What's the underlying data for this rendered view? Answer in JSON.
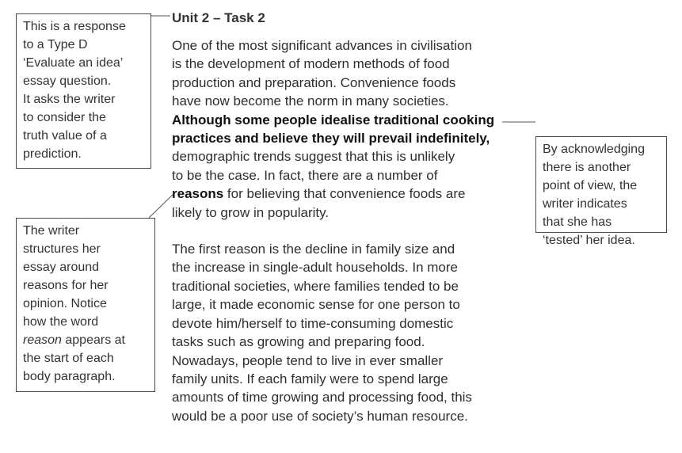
{
  "notes": {
    "type_d": {
      "lines": [
        "This is a response",
        "to a Type D",
        "‘Evaluate an idea’",
        "essay question.",
        "It asks the writer",
        "to consider the",
        "truth value of a",
        "prediction."
      ]
    },
    "structure": {
      "lines_before": [
        "The writer",
        "structures her",
        "essay around",
        "reasons for her",
        "opinion. Notice",
        "how the word"
      ],
      "italic_word": "reason",
      "italic_suffix": " appears at",
      "lines_after": [
        "the start of each",
        "body paragraph."
      ]
    },
    "acknowledging": {
      "lines": [
        "By acknowledging",
        "there is another",
        "point of view, the",
        "writer indicates",
        "that she has",
        "‘tested’ her idea."
      ]
    }
  },
  "essay": {
    "heading": "Unit 2 – Task 2",
    "paragraph1": {
      "lines_plain_start": [
        "One of the most significant advances in civilisation",
        "is the development of modern methods of food",
        "production and preparation. Convenience foods",
        "have now become the norm in many societies."
      ],
      "lines_strong": [
        "Although some people idealise traditional cooking",
        "practices and believe they will prevail indefinitely,"
      ],
      "lines_plain_mid": [
        "demographic trends suggest that this is unlikely",
        "to be the case. In fact, there are a number of"
      ],
      "reasons_word": "reasons",
      "reasons_rest": " for believing that convenience foods are",
      "last_line": "likely to grow in popularity."
    },
    "paragraph2": {
      "lines": [
        "The first reason is the decline in family size and",
        "the increase in single-adult households. In more",
        "traditional societies, where families tended to be",
        "large, it made economic sense for one person to",
        "devote him/herself to time-consuming domestic",
        "tasks such as growing and preparing food.",
        "Nowadays, people tend to live in ever smaller",
        "family units. If each family were to spend large",
        "amounts of time growing and processing food, this",
        "would be a poor use of society’s human resource."
      ]
    }
  }
}
